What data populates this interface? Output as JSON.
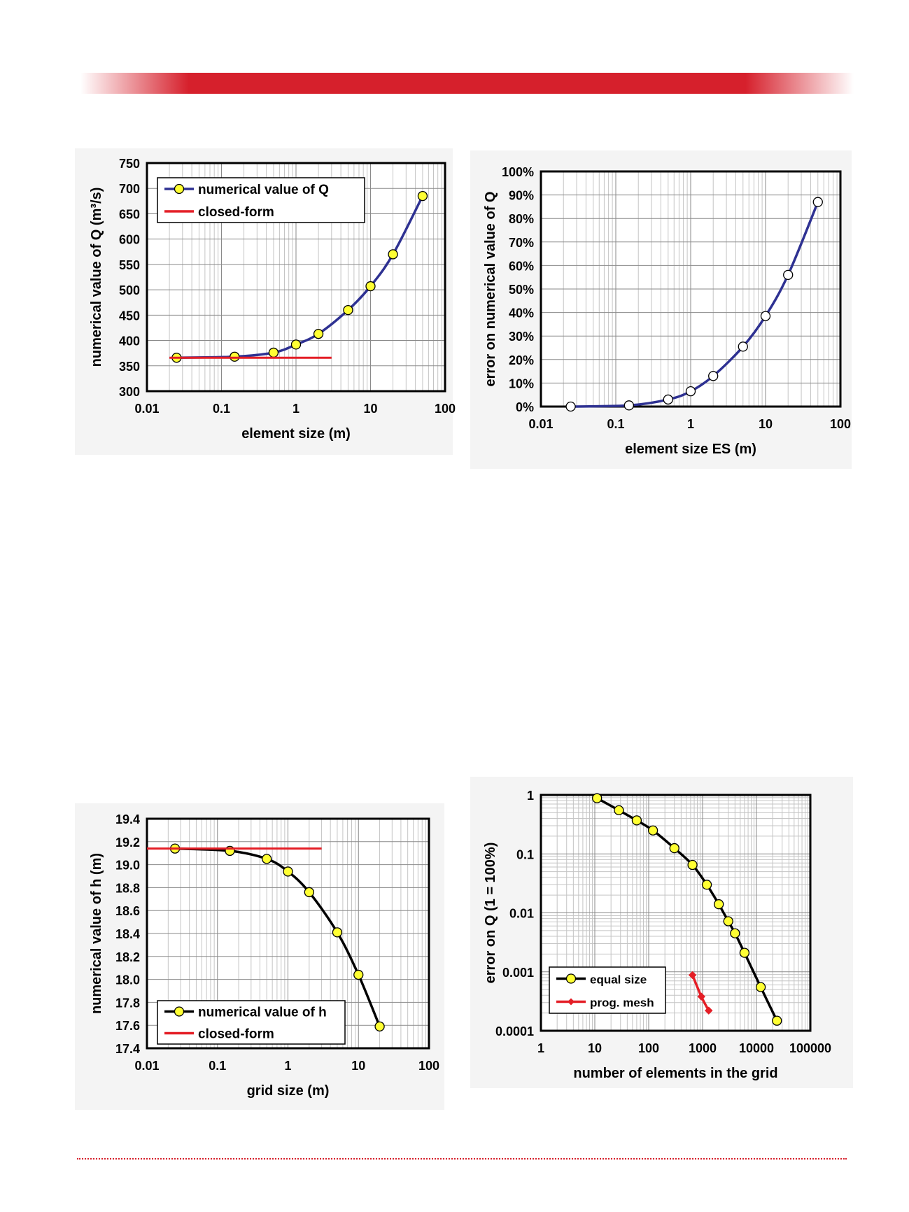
{
  "colors": {
    "accent": "#d6202c",
    "marker_fill": "#ffff33",
    "navy_line": "#2e3192",
    "closed_form": "#e41e26"
  },
  "chart_data": [
    {
      "type": "line",
      "x_scale": "log",
      "xlabel": "element size (m)",
      "ylabel": "numerical value of Q (m³/s)",
      "xlim": [
        0.01,
        100
      ],
      "ylim": [
        300,
        750
      ],
      "x_ticks": [
        "0.01",
        "0.1",
        "1",
        "10",
        "100"
      ],
      "y_ticks": [
        "300",
        "350",
        "400",
        "450",
        "500",
        "550",
        "600",
        "650",
        "700",
        "750"
      ],
      "grid": true,
      "legend": "top-left",
      "series": [
        {
          "name": "numerical value of Q",
          "color": "#2e3192",
          "marker": "yellow-circle",
          "x": [
            0.025,
            0.15,
            0.5,
            1,
            2,
            5,
            10,
            20,
            50
          ],
          "y": [
            366,
            368,
            376,
            392,
            413,
            460,
            507,
            570,
            685
          ]
        },
        {
          "name": "closed-form",
          "color": "#e41e26",
          "marker": "none",
          "x": [
            0.02,
            3
          ],
          "y": [
            366,
            366
          ]
        }
      ]
    },
    {
      "type": "line",
      "x_scale": "log",
      "xlabel": "element size ES (m)",
      "ylabel": "error on numerical value of Q",
      "xlim": [
        0.01,
        100
      ],
      "ylim": [
        0,
        100
      ],
      "x_ticks": [
        "0.01",
        "0.1",
        "1",
        "10",
        "100"
      ],
      "y_ticks": [
        "0%",
        "10%",
        "20%",
        "30%",
        "40%",
        "50%",
        "60%",
        "70%",
        "80%",
        "90%",
        "100%"
      ],
      "grid": true,
      "series": [
        {
          "color": "#2e3192",
          "marker": "white-circle",
          "x": [
            0.025,
            0.15,
            0.5,
            1,
            2,
            5,
            10,
            20,
            50
          ],
          "y": [
            0,
            0.5,
            3,
            6.5,
            13,
            25.5,
            38.5,
            56,
            87
          ]
        }
      ]
    },
    {
      "type": "line",
      "x_scale": "log",
      "xlabel": "grid size (m)",
      "ylabel": "numerical value of h (m)",
      "xlim": [
        0.01,
        100
      ],
      "ylim": [
        17.4,
        19.4
      ],
      "x_ticks": [
        "0.01",
        "0.1",
        "1",
        "10",
        "100"
      ],
      "y_ticks": [
        "17.4",
        "17.6",
        "17.8",
        "18.0",
        "18.2",
        "18.4",
        "18.6",
        "18.8",
        "19.0",
        "19.2",
        "19.4"
      ],
      "grid": true,
      "legend": "bottom-left",
      "series": [
        {
          "name": "numerical value of h",
          "color": "#000000",
          "marker": "yellow-circle",
          "x": [
            0.025,
            0.15,
            0.5,
            1,
            2,
            5,
            10,
            20
          ],
          "y": [
            19.14,
            19.12,
            19.05,
            18.94,
            18.76,
            18.41,
            18.04,
            17.59
          ]
        },
        {
          "name": "closed-form",
          "color": "#e41e26",
          "marker": "none",
          "x": [
            0.01,
            3
          ],
          "y": [
            19.14,
            19.14
          ]
        }
      ]
    },
    {
      "type": "line",
      "x_scale": "log",
      "y_scale": "log",
      "xlabel": "number of elements in the grid",
      "ylabel": "error on Q (1 = 100%)",
      "xlim": [
        1,
        100000
      ],
      "ylim": [
        0.0001,
        1
      ],
      "x_ticks": [
        "1",
        "10",
        "100",
        "1000",
        "10000",
        "100000"
      ],
      "y_ticks": [
        "0.0001",
        "0.001",
        "0.01",
        "0.1",
        "1"
      ],
      "grid": true,
      "legend": "bottom-left",
      "series": [
        {
          "name": "equal size",
          "color": "#000000",
          "marker": "yellow-circle",
          "x": [
            11,
            28,
            60,
            120,
            300,
            650,
            1200,
            2000,
            3000,
            4000,
            6000,
            12000,
            24000
          ],
          "y": [
            0.88,
            0.55,
            0.37,
            0.25,
            0.125,
            0.065,
            0.03,
            0.014,
            0.0072,
            0.0045,
            0.0021,
            0.00055,
            0.000148
          ]
        },
        {
          "name": "prog. mesh",
          "color": "#e41e26",
          "marker": "red-diamond",
          "x": [
            650,
            950,
            1300
          ],
          "y": [
            0.00088,
            0.00038,
            0.00022
          ]
        }
      ]
    }
  ]
}
